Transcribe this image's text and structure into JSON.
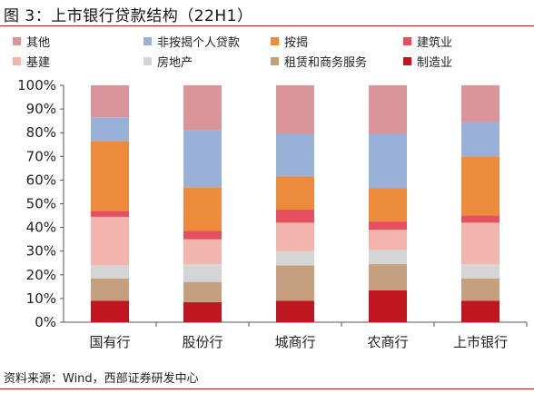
{
  "figure": {
    "title": "图 3：上市银行贷款结构（22H1）",
    "source": "资料来源：Wind，西部证券研发中心"
  },
  "chart_data": {
    "type": "bar",
    "stacked": true,
    "categories": [
      "国有行",
      "股份行",
      "城商行",
      "农商行",
      "上市银行"
    ],
    "ylim": [
      0,
      100
    ],
    "yticks": [
      "0%",
      "10%",
      "20%",
      "30%",
      "40%",
      "50%",
      "60%",
      "70%",
      "80%",
      "90%",
      "100%"
    ],
    "grid": false,
    "legend_position": "top",
    "series": [
      {
        "name": "制造业",
        "color": "#c0161f",
        "values": [
          9,
          8.5,
          9,
          13.5,
          9
        ]
      },
      {
        "name": "租赁和商务服务",
        "color": "#c4a07e",
        "values": [
          9.5,
          8.5,
          15,
          11,
          9.5
        ]
      },
      {
        "name": "房地产",
        "color": "#d5d5d5",
        "values": [
          5.5,
          7.5,
          6,
          6,
          6
        ]
      },
      {
        "name": "基建",
        "color": "#f2b5ae",
        "values": [
          20.5,
          10.5,
          12,
          8.5,
          17.5
        ]
      },
      {
        "name": "建筑业",
        "color": "#e4505f",
        "values": [
          2.5,
          3.5,
          5.5,
          3.5,
          3
        ]
      },
      {
        "name": "按揭",
        "color": "#eb8b3b",
        "values": [
          29.5,
          18.5,
          14,
          14,
          25
        ]
      },
      {
        "name": "非按揭个人贷款",
        "color": "#99b0d9",
        "values": [
          10,
          24,
          18,
          23,
          14.5
        ]
      },
      {
        "name": "其他",
        "color": "#d9959a",
        "values": [
          13.5,
          19,
          20.5,
          20.5,
          15.5
        ]
      }
    ],
    "legend_order": [
      [
        "其他",
        "非按揭个人贷款",
        "按揭",
        "建筑业"
      ],
      [
        "基建",
        "房地产",
        "租赁和商务服务",
        "制造业"
      ]
    ]
  }
}
